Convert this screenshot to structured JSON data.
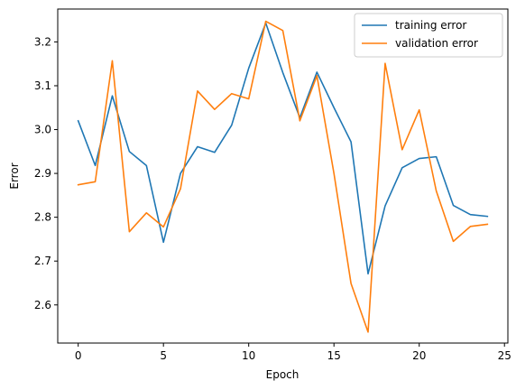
{
  "chart_data": {
    "type": "line",
    "title": "",
    "xlabel": "Epoch",
    "ylabel": "Error",
    "xlim": [
      -1.2,
      25.2
    ],
    "ylim": [
      2.513,
      3.275
    ],
    "xticks": [
      0,
      5,
      10,
      15,
      20,
      25
    ],
    "yticks": [
      2.6,
      2.7,
      2.8,
      2.9,
      3.0,
      3.1,
      3.2
    ],
    "grid": false,
    "legend": "top-right",
    "x": [
      0,
      1,
      2,
      3,
      4,
      5,
      6,
      7,
      8,
      9,
      10,
      11,
      12,
      13,
      14,
      15,
      16,
      17,
      18,
      19,
      20,
      21,
      22,
      23,
      24
    ],
    "series": [
      {
        "name": "training error",
        "color": "#1f77b4",
        "values": [
          3.02,
          2.918,
          3.077,
          2.95,
          2.918,
          2.743,
          2.9,
          2.961,
          2.948,
          3.01,
          3.14,
          3.243,
          3.13,
          3.027,
          3.131,
          3.05,
          2.972,
          2.671,
          2.826,
          2.913,
          2.934,
          2.938,
          2.827,
          2.806,
          2.802
        ]
      },
      {
        "name": "validation error",
        "color": "#ff7f0e",
        "values": [
          2.874,
          2.881,
          3.157,
          2.767,
          2.81,
          2.778,
          2.865,
          3.088,
          3.046,
          3.082,
          3.07,
          3.247,
          3.226,
          3.02,
          3.123,
          2.9,
          2.649,
          2.538,
          3.151,
          2.954,
          3.045,
          2.86,
          2.745,
          2.779,
          2.784
        ]
      }
    ]
  }
}
